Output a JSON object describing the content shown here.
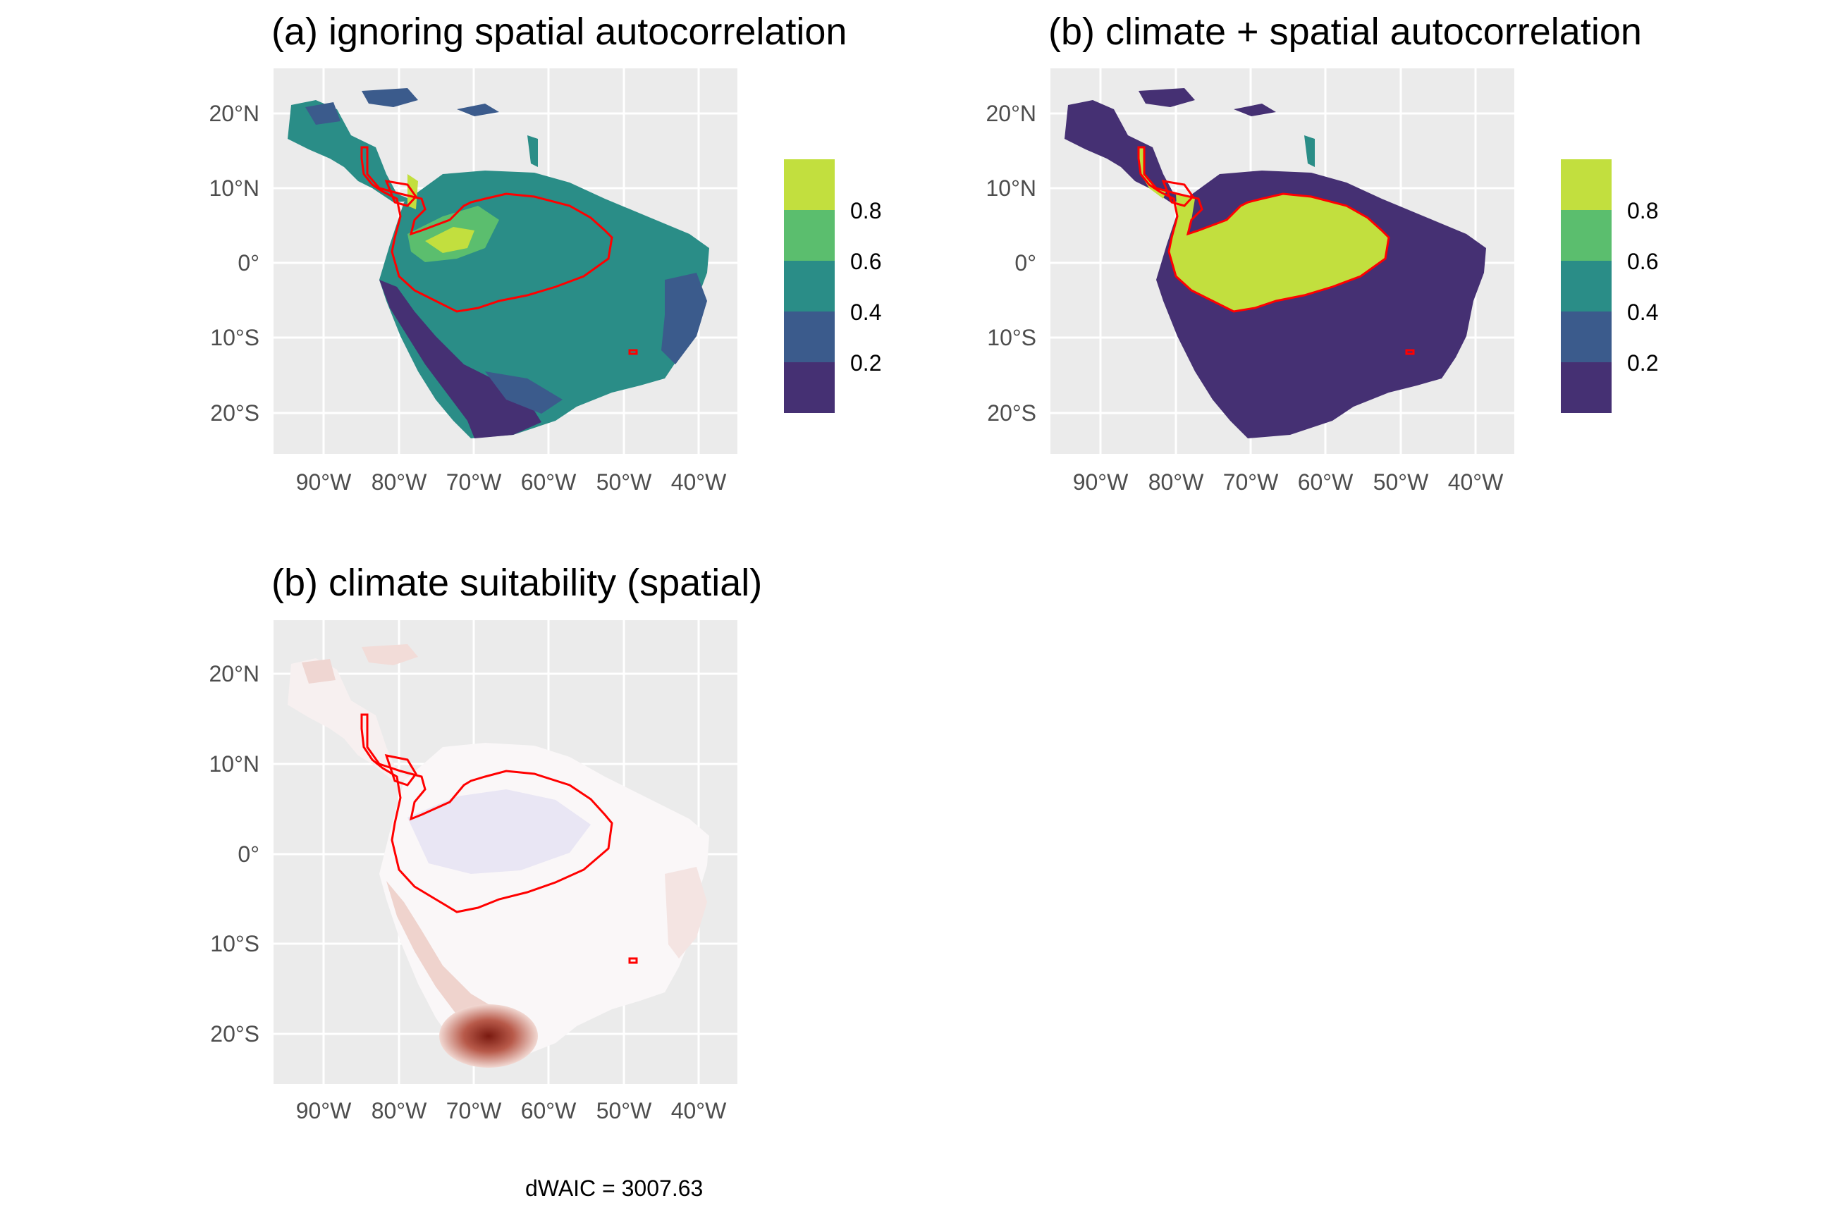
{
  "panels": [
    {
      "id": "a",
      "title": "(a) ignoring spatial autocorrelation",
      "colour_scale": "viridis-binned",
      "y_ticks": [
        "20°N",
        "10°N",
        "0°",
        "10°S",
        "20°S"
      ],
      "x_ticks": [
        "90°W",
        "80°W",
        "70°W",
        "60°W",
        "50°W",
        "40°W"
      ],
      "legend": {
        "labels": [
          "0.8",
          "0.6",
          "0.4",
          "0.2"
        ],
        "colors": [
          "#c2df3e",
          "#5bbe6e",
          "#2a8d87",
          "#3b5b8c",
          "#453073"
        ]
      },
      "fill_colors": {
        "low": "#453073",
        "mid": "#2a8d87",
        "high": "#c2df3e",
        "midlow": "#3b5b8c"
      }
    },
    {
      "id": "b",
      "title": "(b) climate + spatial autocorrelation",
      "colour_scale": "viridis-binned",
      "y_ticks": [
        "20°N",
        "10°N",
        "0°",
        "10°S",
        "20°S"
      ],
      "x_ticks": [
        "90°W",
        "80°W",
        "70°W",
        "60°W",
        "50°W",
        "40°W"
      ],
      "legend": {
        "labels": [
          "0.8",
          "0.6",
          "0.4",
          "0.2"
        ],
        "colors": [
          "#c2df3e",
          "#5bbe6e",
          "#2a8d87",
          "#3b5b8c",
          "#453073"
        ]
      },
      "fill_colors": {
        "low": "#453073",
        "high": "#c2df3e"
      }
    },
    {
      "id": "c",
      "title": "(b) climate suitability (spatial)",
      "colour_scale": "diverging-blue-white-red",
      "y_ticks": [
        "20°N",
        "10°N",
        "0°",
        "10°S",
        "20°S"
      ],
      "x_ticks": [
        "90°W",
        "80°W",
        "70°W",
        "60°W",
        "50°W",
        "40°W"
      ],
      "fill_colors": {
        "low": "#e6e2f3",
        "mid": "#faf7f7",
        "high": "#7a1a10"
      }
    }
  ],
  "footnote": "dWAIC = 3007.63",
  "range_outline_color": "#ff0000",
  "gridline_color": "#ffffff",
  "panel_background": "#ebebeb"
}
